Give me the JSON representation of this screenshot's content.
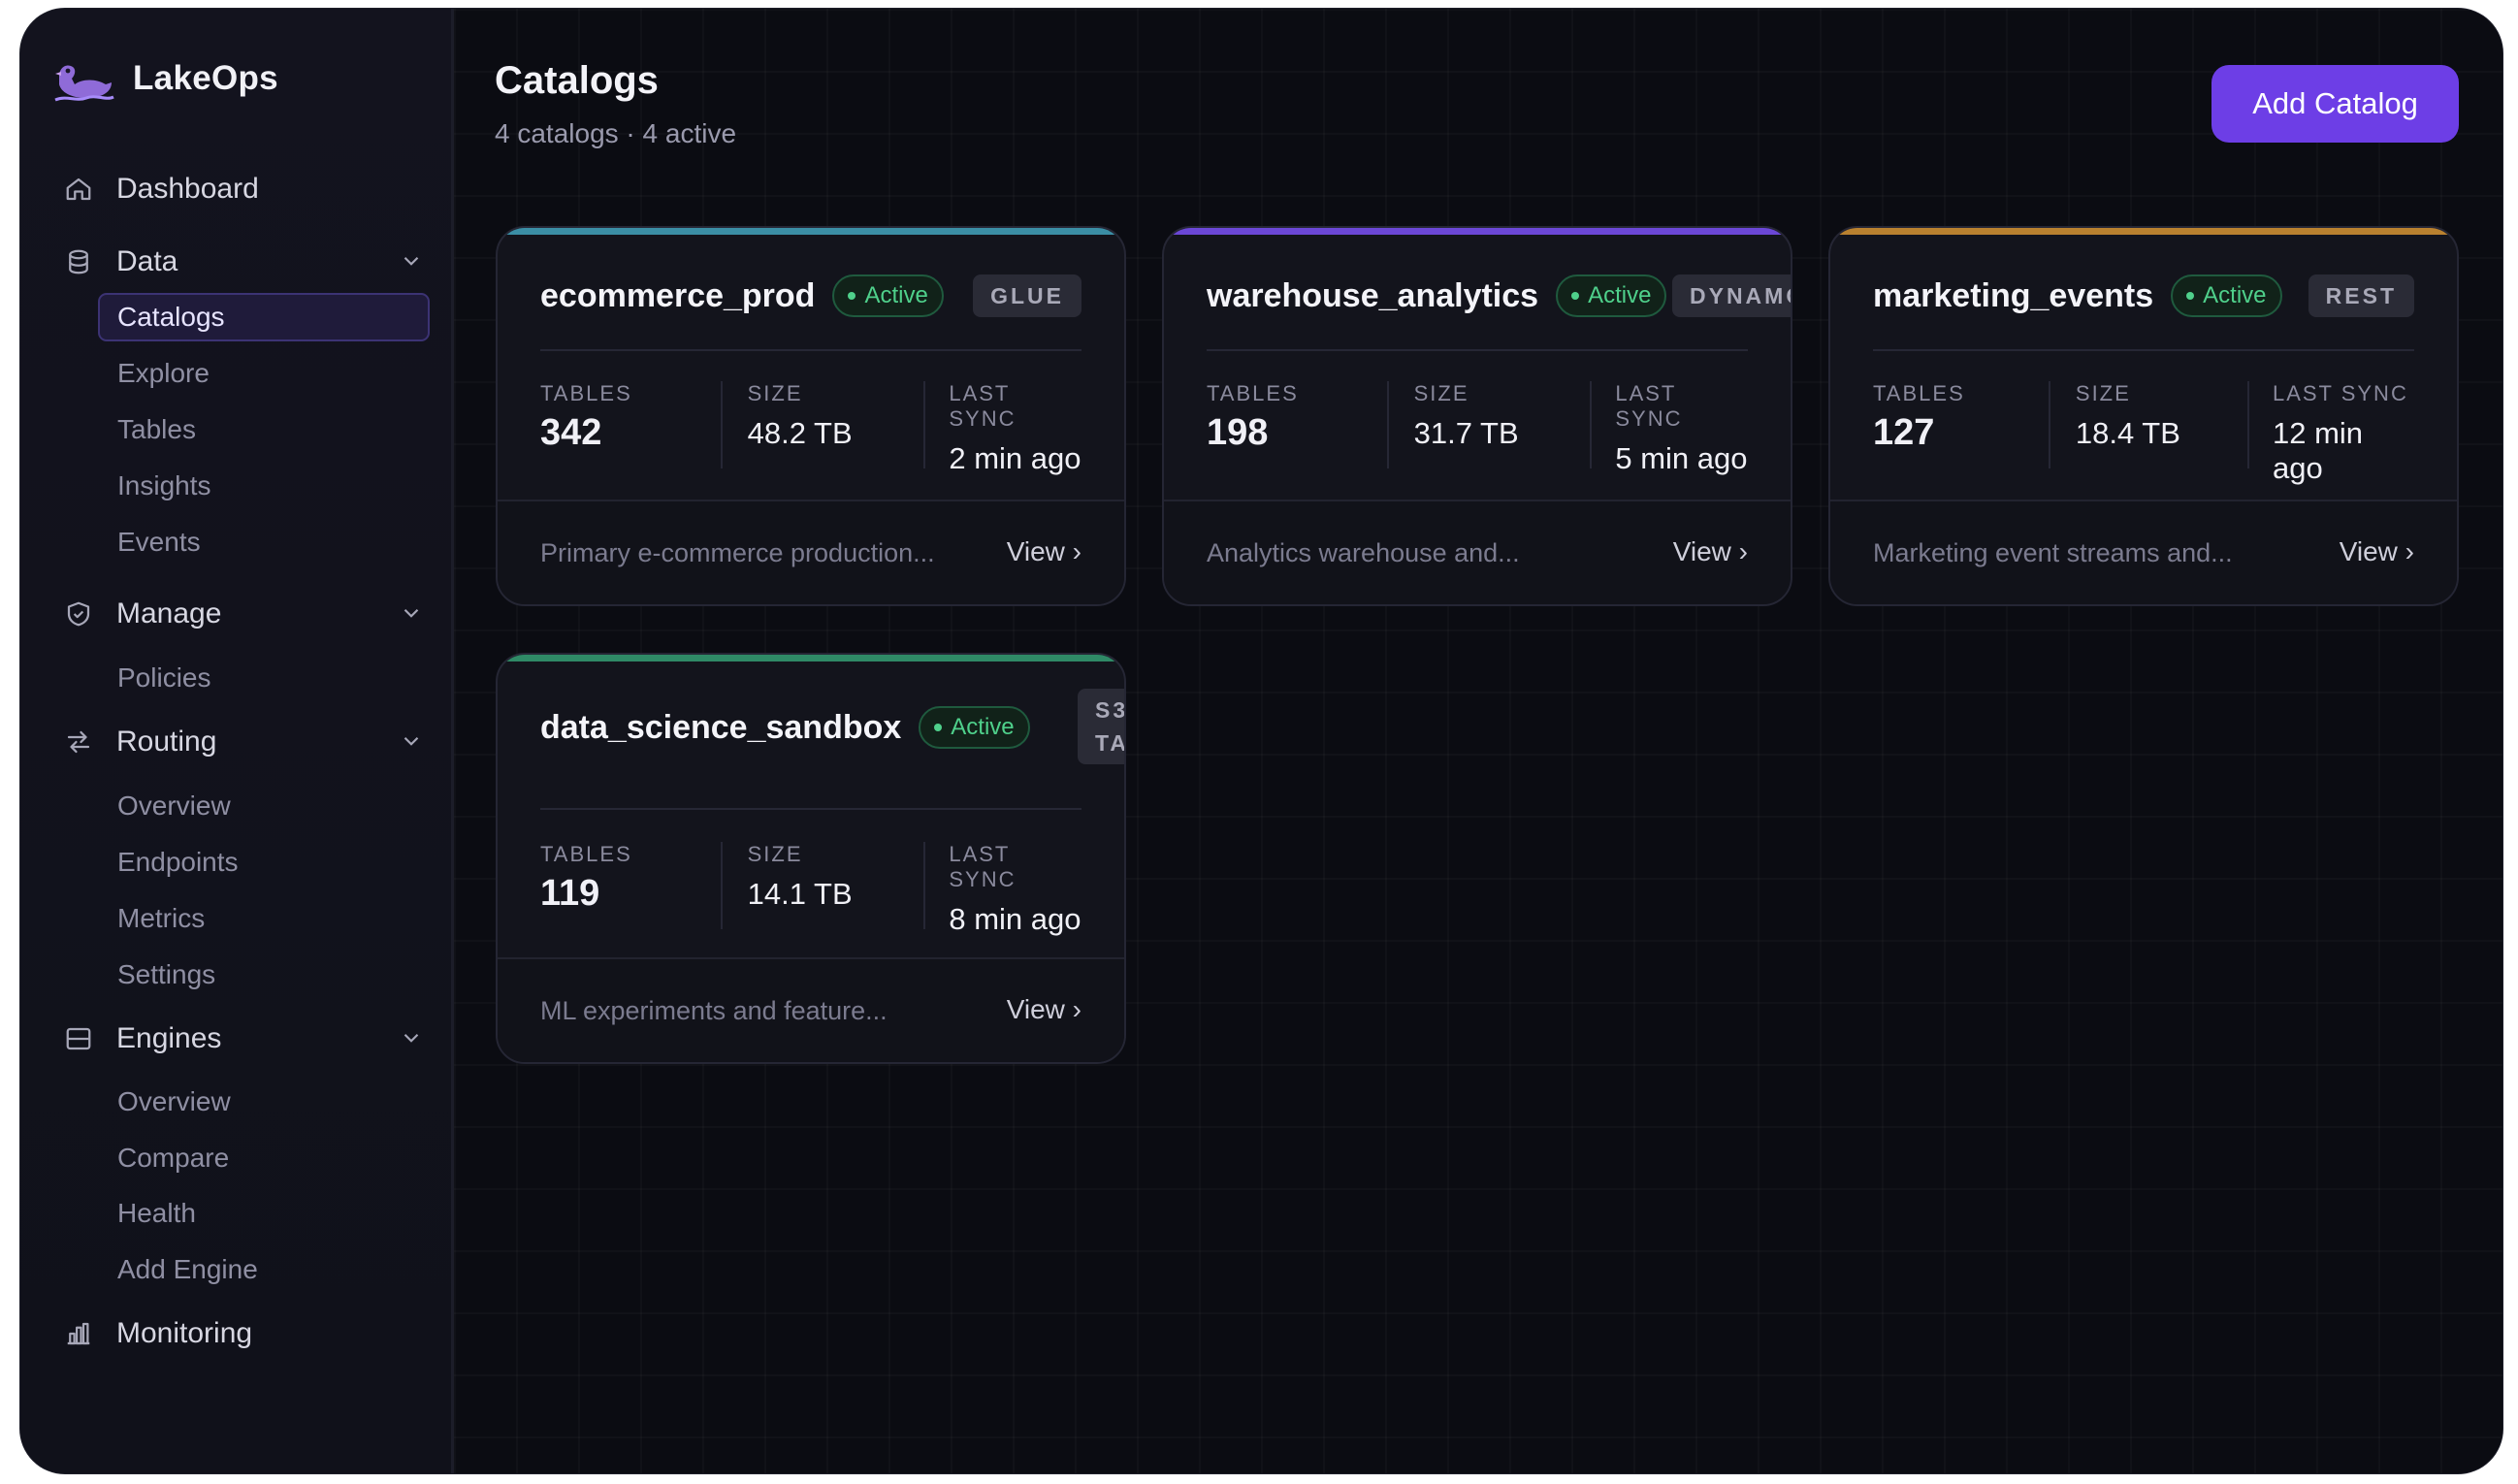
{
  "app": {
    "name": "LakeOps"
  },
  "nav": {
    "dashboard": "Dashboard",
    "data": {
      "label": "Data",
      "items": [
        "Catalogs",
        "Explore",
        "Tables",
        "Insights",
        "Events"
      ]
    },
    "manage": {
      "label": "Manage",
      "items": [
        "Policies"
      ]
    },
    "routing": {
      "label": "Routing",
      "items": [
        "Overview",
        "Endpoints",
        "Metrics",
        "Settings"
      ]
    },
    "engines": {
      "label": "Engines",
      "items": [
        "Overview",
        "Compare",
        "Health",
        "Add Engine"
      ]
    },
    "monitoring": "Monitoring",
    "active_item": "Catalogs"
  },
  "page": {
    "title": "Catalogs",
    "subtitle": "4 catalogs · 4 active",
    "add_button": "Add Catalog"
  },
  "stat_labels": {
    "tables": "TABLES",
    "size": "SIZE",
    "last_sync": "LAST SYNC"
  },
  "view_label": "View ›",
  "catalogs": [
    {
      "name": "ecommerce_prod",
      "status": "Active",
      "type": "GLUE",
      "tables": "342",
      "size": "48.2 TB",
      "last_sync": "2 min ago",
      "description": "Primary e-commerce production...",
      "accent": "#3b8ea5"
    },
    {
      "name": "warehouse_analytics",
      "status": "Active",
      "type": "DYNAMO",
      "tables": "198",
      "size": "31.7 TB",
      "last_sync": "5 min ago",
      "description": "Analytics warehouse and...",
      "accent": "#6b47d6"
    },
    {
      "name": "marketing_events",
      "status": "Active",
      "type": "REST",
      "tables": "127",
      "size": "18.4 TB",
      "last_sync": "12 min ago",
      "description": "Marketing event streams and...",
      "accent": "#b9812f"
    },
    {
      "name": "data_science_sandbox",
      "status": "Active",
      "type_line1": "S3",
      "type_line2": "TABLE",
      "tables": "119",
      "size": "14.1 TB",
      "last_sync": "8 min ago",
      "description": "ML experiments and feature...",
      "accent": "#2f8a66"
    }
  ],
  "colors": {
    "primary": "#6d3ee6",
    "active_green": "#4fd08b",
    "background": "#0b0c12"
  }
}
